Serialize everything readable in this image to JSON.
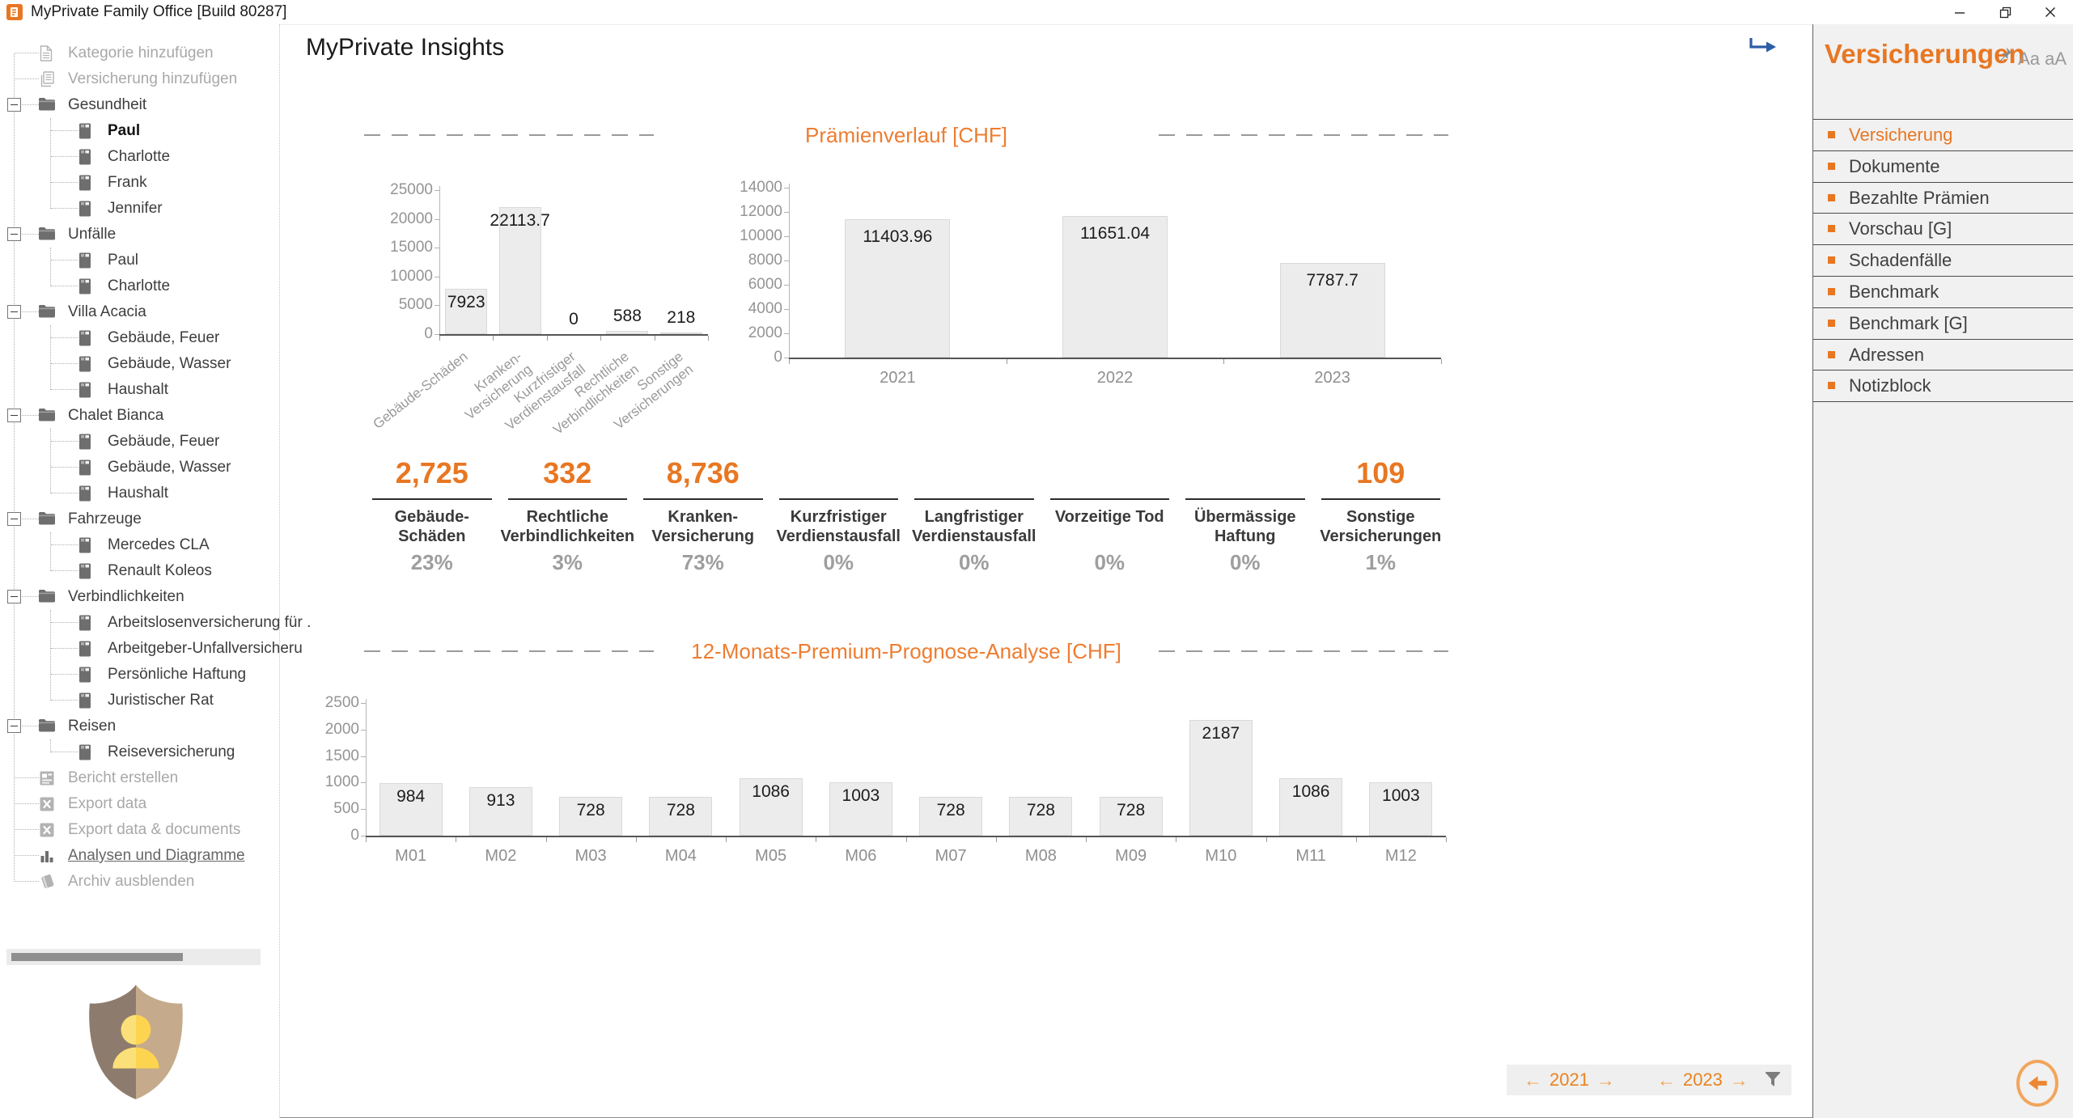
{
  "window": {
    "title": "MyPrivate Family Office [Build 80287]"
  },
  "main": {
    "page_title": "MyPrivate Insights",
    "section1_title": "Prämienverlauf [CHF]",
    "section2_title": "12-Monats-Premium-Prognose-Analyse [CHF]"
  },
  "tree": {
    "items": [
      {
        "label": "Kategorie hinzufügen",
        "icon": "add-document-icon",
        "level": 0,
        "type": "action",
        "muted": true
      },
      {
        "label": "Versicherung hinzufügen",
        "icon": "add-insurance-icon",
        "level": 0,
        "type": "action",
        "muted": true
      },
      {
        "label": "Gesundheit",
        "icon": "folder-icon",
        "level": 0,
        "type": "category"
      },
      {
        "label": "Paul",
        "icon": "policy-icon",
        "level": 1,
        "type": "leaf",
        "bold": true
      },
      {
        "label": "Charlotte",
        "icon": "policy-icon",
        "level": 1,
        "type": "leaf"
      },
      {
        "label": "Frank",
        "icon": "policy-icon",
        "level": 1,
        "type": "leaf"
      },
      {
        "label": "Jennifer",
        "icon": "policy-icon",
        "level": 1,
        "type": "leaf"
      },
      {
        "label": "Unfälle",
        "icon": "folder-icon",
        "level": 0,
        "type": "category"
      },
      {
        "label": "Paul",
        "icon": "policy-icon",
        "level": 1,
        "type": "leaf"
      },
      {
        "label": "Charlotte",
        "icon": "policy-icon",
        "level": 1,
        "type": "leaf"
      },
      {
        "label": "Villa Acacia",
        "icon": "folder-icon",
        "level": 0,
        "type": "category"
      },
      {
        "label": "Gebäude, Feuer",
        "icon": "policy-icon",
        "level": 1,
        "type": "leaf"
      },
      {
        "label": "Gebäude, Wasser",
        "icon": "policy-icon",
        "level": 1,
        "type": "leaf"
      },
      {
        "label": "Haushalt",
        "icon": "policy-icon",
        "level": 1,
        "type": "leaf"
      },
      {
        "label": "Chalet Bianca",
        "icon": "folder-icon",
        "level": 0,
        "type": "category"
      },
      {
        "label": "Gebäude, Feuer",
        "icon": "policy-icon",
        "level": 1,
        "type": "leaf"
      },
      {
        "label": "Gebäude, Wasser",
        "icon": "policy-icon",
        "level": 1,
        "type": "leaf"
      },
      {
        "label": "Haushalt",
        "icon": "policy-icon",
        "level": 1,
        "type": "leaf"
      },
      {
        "label": "Fahrzeuge",
        "icon": "folder-icon",
        "level": 0,
        "type": "category"
      },
      {
        "label": "Mercedes CLA",
        "icon": "policy-icon",
        "level": 1,
        "type": "leaf"
      },
      {
        "label": "Renault Koleos",
        "icon": "policy-icon",
        "level": 1,
        "type": "leaf"
      },
      {
        "label": "Verbindlichkeiten",
        "icon": "folder-icon",
        "level": 0,
        "type": "category"
      },
      {
        "label": "Arbeitslosenversicherung für .",
        "icon": "policy-icon",
        "level": 1,
        "type": "leaf"
      },
      {
        "label": "Arbeitgeber-Unfallversicheru",
        "icon": "policy-icon",
        "level": 1,
        "type": "leaf"
      },
      {
        "label": "Persönliche Haftung",
        "icon": "policy-icon",
        "level": 1,
        "type": "leaf"
      },
      {
        "label": "Juristischer Rat",
        "icon": "policy-icon",
        "level": 1,
        "type": "leaf"
      },
      {
        "label": "Reisen",
        "icon": "folder-icon",
        "level": 0,
        "type": "category"
      },
      {
        "label": "Reiseversicherung",
        "icon": "policy-icon",
        "level": 1,
        "type": "leaf"
      },
      {
        "label": "Bericht erstellen",
        "icon": "report-icon",
        "level": 0,
        "type": "action",
        "muted": true
      },
      {
        "label": "Export data",
        "icon": "excel-icon",
        "level": 0,
        "type": "action",
        "muted": true
      },
      {
        "label": "Export data & documents",
        "icon": "excel-icon",
        "level": 0,
        "type": "action",
        "muted": true
      },
      {
        "label": "Analysen und Diagramme",
        "icon": "bar-chart-icon",
        "level": 0,
        "type": "action",
        "active": true
      },
      {
        "label": "Archiv ausblenden",
        "icon": "archive-icon",
        "level": 0,
        "type": "action",
        "muted": true
      }
    ]
  },
  "chart_data": [
    {
      "id": "premiums_by_category",
      "type": "bar",
      "categories": [
        "Gebäude-Schäden",
        "Kranken-Versicherung",
        "Kurzfristiger\nVerdienstausfall",
        "Rechtliche\nVerbindlichkeiten",
        "Sonstige\nVersicherungen"
      ],
      "values": [
        7923,
        22113.7,
        0,
        588,
        218
      ],
      "value_labels": [
        "7923",
        "22113.7",
        "0",
        "588",
        "218"
      ],
      "title": "",
      "xlabel": "",
      "ylabel": "",
      "ylim": [
        0,
        25000
      ],
      "yticks": [
        0,
        5000,
        10000,
        15000,
        20000,
        25000
      ],
      "grid": false,
      "legend": "none"
    },
    {
      "id": "premium_history",
      "type": "bar",
      "categories": [
        "2021",
        "2022",
        "2023"
      ],
      "values": [
        11403.96,
        11651.04,
        7787.7
      ],
      "value_labels": [
        "11403.96",
        "11651.04",
        "7787.7"
      ],
      "title": "Prämienverlauf [CHF]",
      "xlabel": "",
      "ylabel": "",
      "ylim": [
        0,
        14000
      ],
      "yticks": [
        0,
        2000,
        4000,
        6000,
        8000,
        10000,
        12000,
        14000
      ],
      "grid": false,
      "legend": "none"
    },
    {
      "id": "monthly_premium_forecast",
      "type": "bar",
      "categories": [
        "M01",
        "M02",
        "M03",
        "M04",
        "M05",
        "M06",
        "M07",
        "M08",
        "M09",
        "M10",
        "M11",
        "M12"
      ],
      "values": [
        984,
        913,
        728,
        728,
        1086,
        1003,
        728,
        728,
        728,
        2187,
        1086,
        1003
      ],
      "value_labels": [
        "984",
        "913",
        "728",
        "728",
        "1086",
        "1003",
        "728",
        "728",
        "728",
        "2187",
        "1086",
        "1003"
      ],
      "title": "12-Monats-Premium-Prognose-Analyse [CHF]",
      "xlabel": "",
      "ylabel": "",
      "ylim": [
        0,
        2500
      ],
      "yticks": [
        0,
        500,
        1000,
        1500,
        2000,
        2500
      ],
      "grid": false,
      "legend": "none"
    }
  ],
  "stats": [
    {
      "value": "2,725",
      "label": "Gebäude-Schäden",
      "percent": "23%"
    },
    {
      "value": "332",
      "label": "Rechtliche Verbindlichkeiten",
      "percent": "3%"
    },
    {
      "value": "8,736",
      "label": "Kranken-Versicherung",
      "percent": "73%"
    },
    {
      "value": "",
      "label": "Kurzfristiger Verdienstausfall",
      "percent": "0%"
    },
    {
      "value": "",
      "label": "Langfristiger Verdienstausfall",
      "percent": "0%"
    },
    {
      "value": "",
      "label": "Vorzeitige Tod",
      "percent": "0%"
    },
    {
      "value": "",
      "label": "Übermässige Haftung",
      "percent": "0%"
    },
    {
      "value": "109",
      "label": "Sonstige Versicherungen",
      "percent": "1%"
    }
  ],
  "right_panel": {
    "title": "Versicherungen",
    "font_size_label": "Aa aA",
    "items": [
      {
        "label": "Versicherung",
        "active": true
      },
      {
        "label": "Dokumente"
      },
      {
        "label": "Bezahlte Prämien"
      },
      {
        "label": "Vorschau [G]"
      },
      {
        "label": "Schadenfälle"
      },
      {
        "label": "Benchmark"
      },
      {
        "label": "Benchmark [G]"
      },
      {
        "label": "Adressen"
      },
      {
        "label": "Notizblock"
      }
    ]
  },
  "year_nav": {
    "from": "2021",
    "to": "2023",
    "prev_glyph": "←",
    "next_glyph": "→"
  },
  "colors": {
    "accent": "#E87722",
    "chart_title": "#ED7D31",
    "bar_fill": "#ECECEC",
    "bar_border": "#D9D9D9",
    "nav_arrow": "#F0A04B",
    "blue_arrow": "#2D5CA6"
  }
}
